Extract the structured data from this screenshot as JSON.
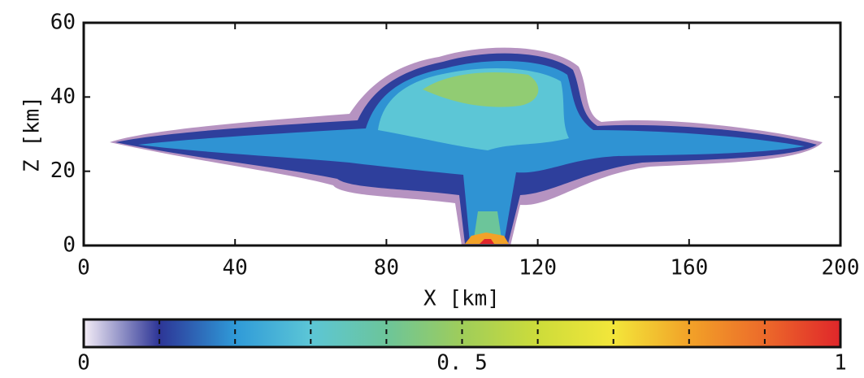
{
  "chart_data": {
    "type": "heatmap",
    "xlabel": "X [km]",
    "ylabel": "Z [km]",
    "xlim": [
      0,
      200
    ],
    "xticks": [
      0,
      40,
      80,
      120,
      160,
      200
    ],
    "ylim": [
      0,
      60
    ],
    "yticks": [
      0,
      20,
      40,
      60
    ],
    "colorbar": {
      "lim": [
        0,
        1
      ],
      "ticks": [
        0,
        {
          "value": 0.5,
          "label": "0. 5"
        },
        1
      ],
      "colors": [
        "#f5eef7",
        "#2d3596",
        "#2f9ad8",
        "#5cc6d6",
        "#6cc59a",
        "#9fcd5a",
        "#cddc3a",
        "#f3e63a",
        "#f2a228",
        "#ec6a2a",
        "#e0262a"
      ]
    }
  }
}
